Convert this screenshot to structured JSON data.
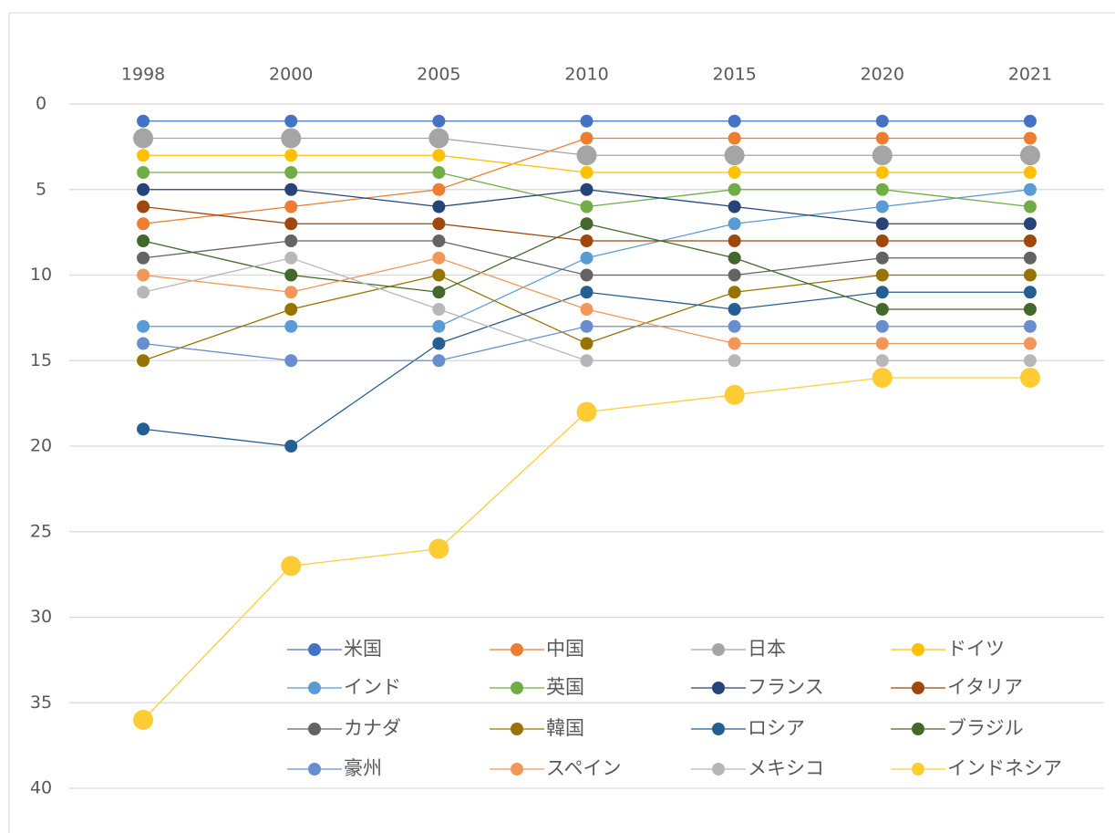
{
  "chart_data": {
    "type": "line",
    "categories": [
      "1998",
      "2000",
      "2005",
      "2010",
      "2015",
      "2020",
      "2021"
    ],
    "ylim": [
      0,
      40
    ],
    "yticks": [
      0,
      5,
      10,
      15,
      20,
      25,
      30,
      35,
      40
    ],
    "y_inverted": true,
    "grid": true,
    "legend": "bottom",
    "series": [
      {
        "name": "米国",
        "color": "#4472c4",
        "values": [
          1,
          1,
          1,
          1,
          1,
          1,
          1
        ]
      },
      {
        "name": "中国",
        "color": "#ed7d31",
        "values": [
          7,
          6,
          5,
          2,
          2,
          2,
          2
        ]
      },
      {
        "name": "日本",
        "color": "#a5a5a5",
        "values": [
          2,
          2,
          2,
          3,
          3,
          3,
          3
        ],
        "large_marker": true
      },
      {
        "name": "ドイツ",
        "color": "#ffc000",
        "values": [
          3,
          3,
          3,
          4,
          4,
          4,
          4
        ]
      },
      {
        "name": "インド",
        "color": "#5b9bd5",
        "values": [
          13,
          13,
          13,
          9,
          7,
          6,
          5
        ]
      },
      {
        "name": "英国",
        "color": "#70ad47",
        "values": [
          4,
          4,
          4,
          6,
          5,
          5,
          6
        ]
      },
      {
        "name": "フランス",
        "color": "#264478",
        "values": [
          5,
          5,
          6,
          5,
          6,
          7,
          7
        ]
      },
      {
        "name": "イタリア",
        "color": "#9e480e",
        "values": [
          6,
          7,
          7,
          8,
          8,
          8,
          8
        ]
      },
      {
        "name": "カナダ",
        "color": "#636363",
        "values": [
          9,
          8,
          8,
          10,
          10,
          9,
          9
        ]
      },
      {
        "name": "韓国",
        "color": "#997300",
        "values": [
          15,
          12,
          10,
          14,
          11,
          10,
          10
        ]
      },
      {
        "name": "ロシア",
        "color": "#255e91",
        "values": [
          19,
          20,
          14,
          11,
          12,
          11,
          11
        ]
      },
      {
        "name": "ブラジル",
        "color": "#43682b",
        "values": [
          8,
          10,
          11,
          7,
          9,
          12,
          12
        ]
      },
      {
        "name": "豪州",
        "color": "#698ed0",
        "values": [
          14,
          15,
          15,
          13,
          13,
          13,
          13
        ]
      },
      {
        "name": "スペイン",
        "color": "#f1975a",
        "values": [
          10,
          11,
          9,
          12,
          14,
          14,
          14
        ]
      },
      {
        "name": "メキシコ",
        "color": "#b7b7b7",
        "values": [
          11,
          9,
          12,
          15,
          15,
          15,
          15
        ]
      },
      {
        "name": "インドネシア",
        "color": "#ffcd33",
        "values": [
          36,
          27,
          26,
          18,
          17,
          16,
          16
        ],
        "large_marker": true
      }
    ]
  }
}
